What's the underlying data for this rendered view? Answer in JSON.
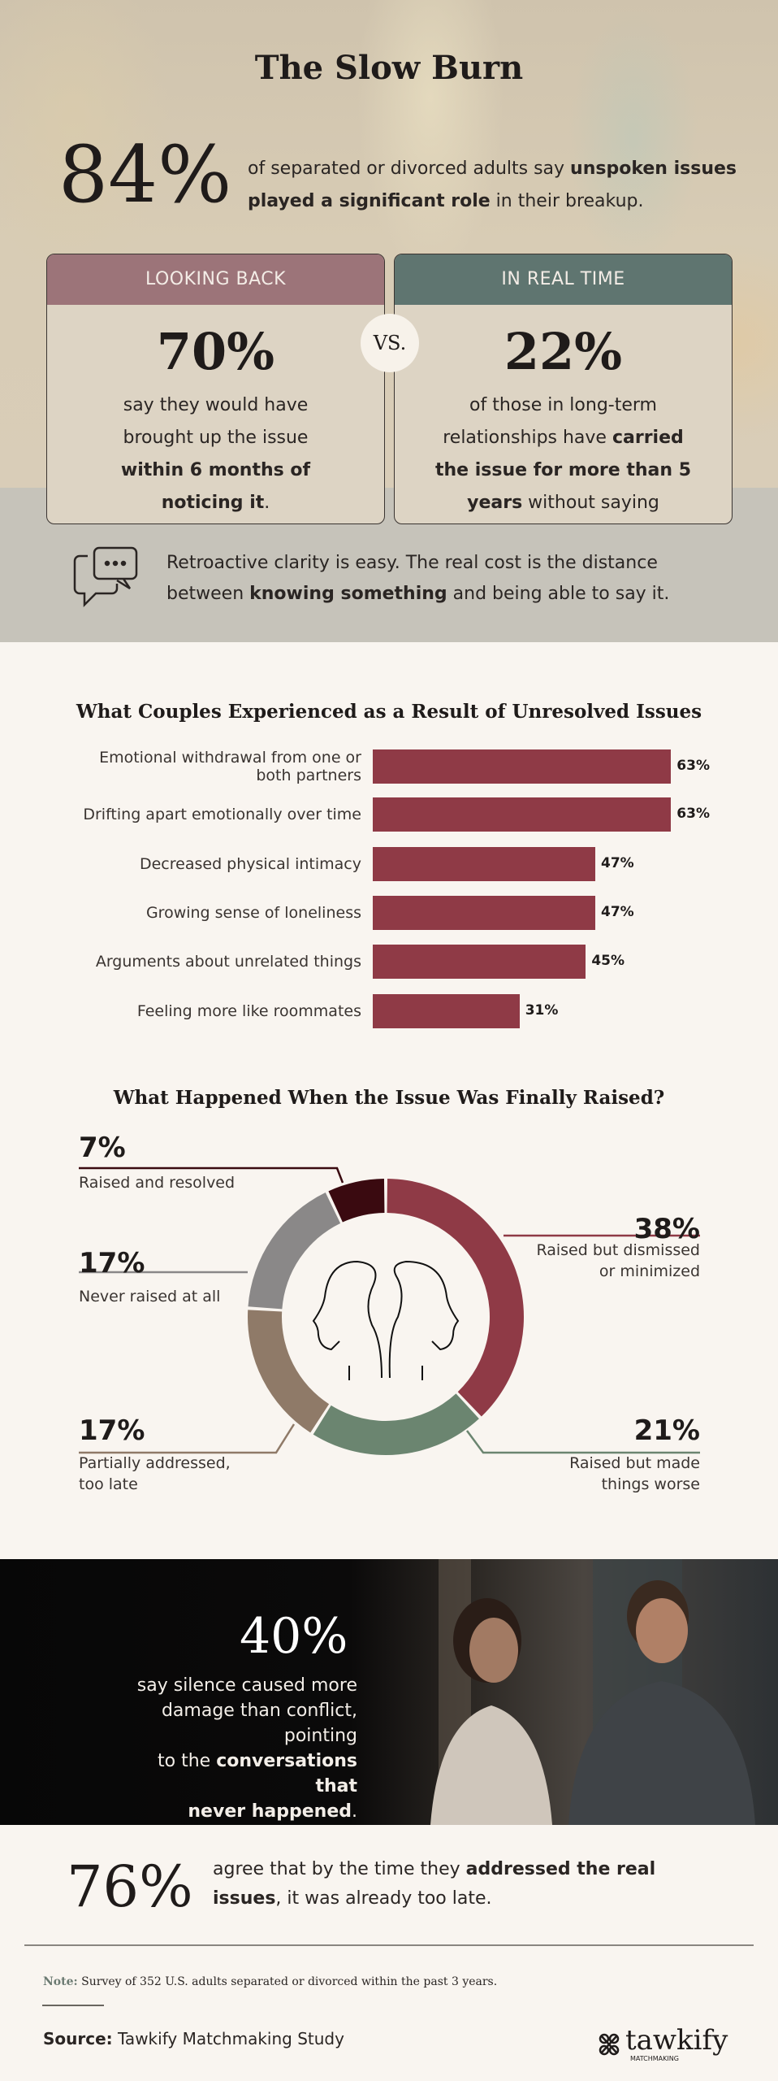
{
  "header": {
    "title": "The Slow Burn"
  },
  "stat84": {
    "value": "84%",
    "text_pre": "of separated or divorced adults say ",
    "text_bold": "unspoken issues played a significant role",
    "text_post": " in their breakup."
  },
  "comparison": {
    "left": {
      "header": "LOOKING BACK",
      "value": "70%",
      "t1": "say they would have",
      "t2": "brought up the issue",
      "t3": "within 6 months of",
      "t4b": "noticing it",
      "t4": ".",
      "color": "#9c7479"
    },
    "vs": "VS.",
    "right": {
      "header": "IN REAL TIME",
      "value": "22%",
      "t1": "of those in long-term",
      "t2": "relationships have ",
      "t2b": "carried",
      "t3": "the issue for more than 5",
      "t4b": "years",
      "t4": " without saying",
      "color": "#5f7570"
    }
  },
  "quote": {
    "icon": "chat-bubbles-icon",
    "l1": "Retroactive clarity is easy. The real cost is the distance",
    "l2a": "between ",
    "l2b": "knowing something",
    "l2c": " and being able to say it."
  },
  "chart_data": [
    {
      "type": "bar",
      "orientation": "horizontal",
      "title": "What Couples Experienced as a Result of Unresolved Issues",
      "categories": [
        "Emotional withdrawal from one or both partners",
        "Drifting apart emotionally over time",
        "Decreased physical intimacy",
        "Growing sense of loneliness",
        "Arguments about unrelated things",
        "Feeling more like roommates"
      ],
      "category_lines": [
        [
          "Emotional withdrawal from one or",
          "both partners"
        ],
        [
          "Drifting apart emotionally over time"
        ],
        [
          "Decreased physical intimacy"
        ],
        [
          "Growing sense of loneliness"
        ],
        [
          "Arguments about unrelated things"
        ],
        [
          "Feeling more like roommates"
        ]
      ],
      "values": [
        63,
        63,
        47,
        47,
        45,
        31
      ],
      "labels": [
        "63%",
        "63%",
        "47%",
        "47%",
        "45%",
        "31%"
      ],
      "color": "#8f3a46"
    },
    {
      "type": "pie",
      "style": "donut",
      "title": "What Happened When the Issue Was Finally Raised?",
      "center_icon": "two-heads-icon",
      "slices": [
        {
          "label": "Raised but dismissed or minimized",
          "lines": [
            "Raised but dismissed",
            "or minimized"
          ],
          "value": 38,
          "display": "38%",
          "color": "#8f3a46"
        },
        {
          "label": "Raised but made things worse",
          "lines": [
            "Raised but made",
            "things worse"
          ],
          "value": 21,
          "display": "21%",
          "color": "#6b8570"
        },
        {
          "label": "Partially addressed, too late",
          "lines": [
            "Partially addressed,",
            "too late"
          ],
          "value": 17,
          "display": "17%",
          "color": "#8f7a68"
        },
        {
          "label": "Never raised at all",
          "lines": [
            "Never raised at all"
          ],
          "value": 17,
          "display": "17%",
          "color": "#8a8888"
        },
        {
          "label": "Raised and resolved",
          "lines": [
            "Raised and resolved"
          ],
          "value": 7,
          "display": "7%",
          "color": "#3a0a10"
        }
      ]
    }
  ],
  "stat40": {
    "value": "40%",
    "l1": "say silence caused more",
    "l2": "damage than conflict, pointing",
    "l3a": "to the ",
    "l3b": "conversations that",
    "l4b": "never happened",
    "l4": "."
  },
  "stat76": {
    "value": "76%",
    "l1a": "agree that by the time they ",
    "l1b": "addressed the real",
    "l2b": "issues",
    "l2": ", it was already too late."
  },
  "footer": {
    "note_label": "Note:",
    "note": " Survey of 352 U.S. adults separated or divorced within the past 3 years.",
    "source_label": "Source:",
    "source": " Tawkify Matchmaking Study",
    "logo": "tawkify",
    "logo_sub": "MATCHMAKING"
  }
}
